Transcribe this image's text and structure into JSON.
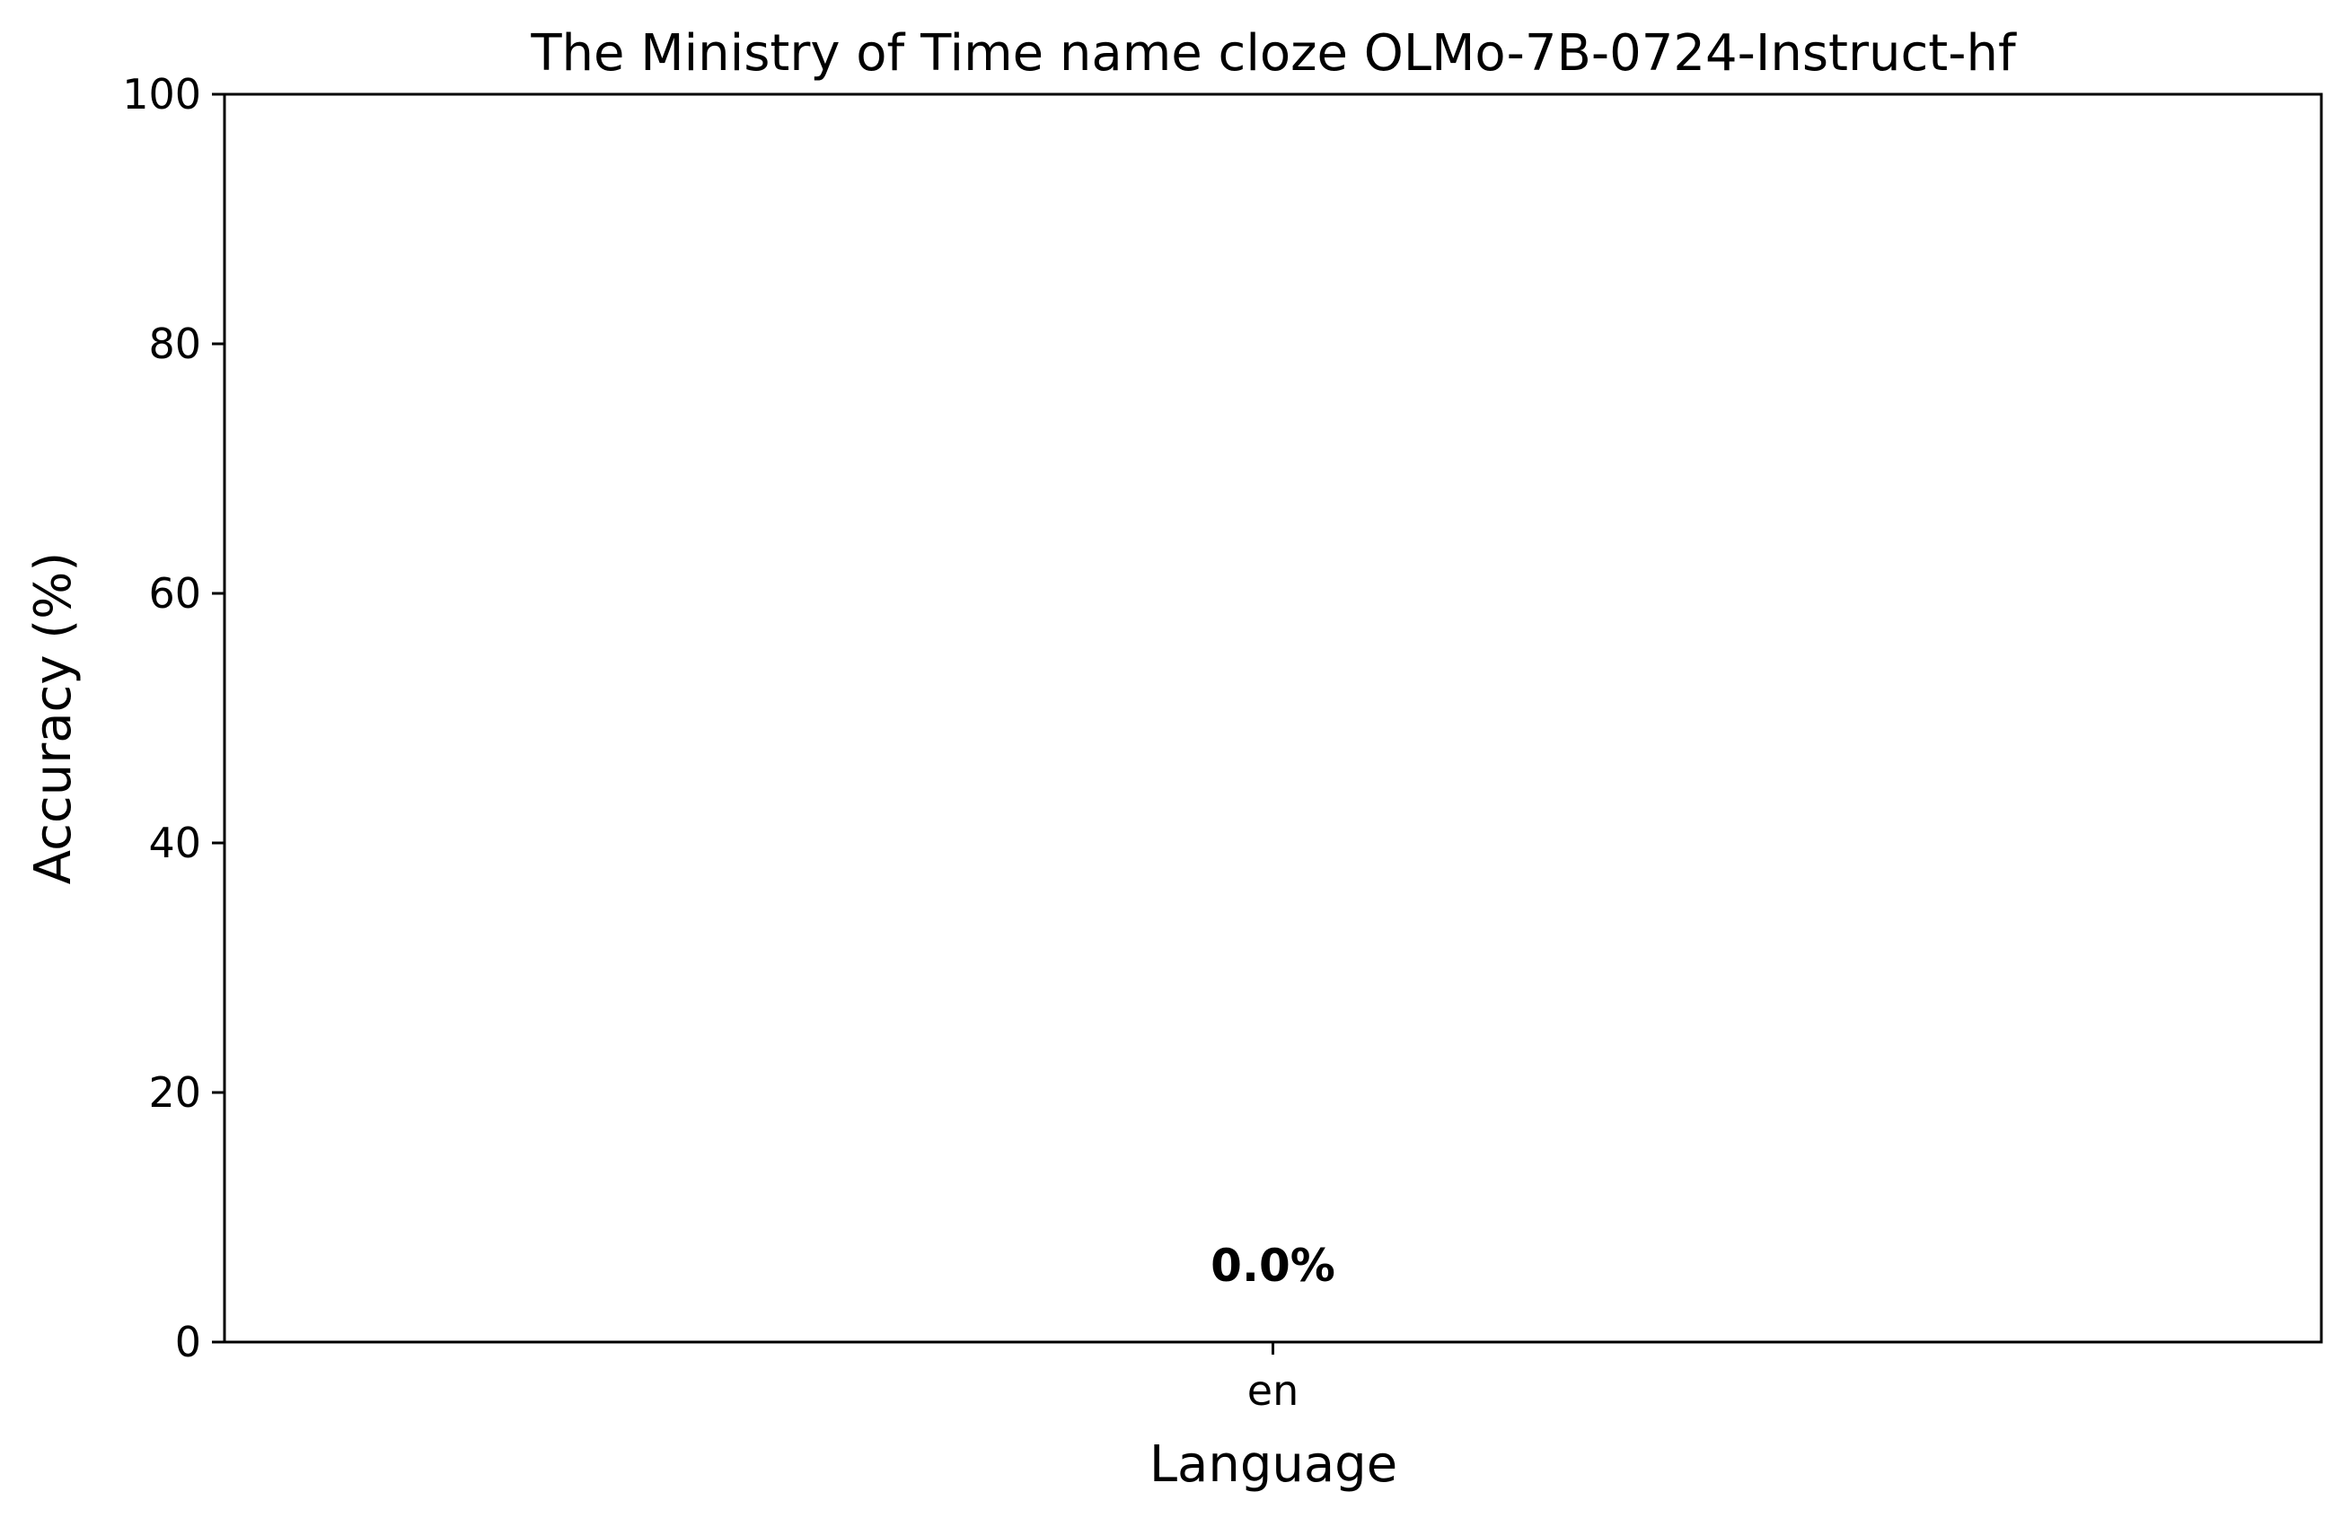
{
  "chart_data": {
    "type": "bar",
    "title": "The Ministry of Time name cloze OLMo-7B-0724-Instruct-hf",
    "xlabel": "Language",
    "ylabel": "Accuracy (%)",
    "categories": [
      "en"
    ],
    "values": [
      0.0
    ],
    "data_labels": [
      "0.0%"
    ],
    "ylim": [
      0,
      100
    ],
    "yticks": [
      0,
      20,
      40,
      60,
      80,
      100
    ],
    "ytick_labels": [
      "0",
      "20",
      "40",
      "60",
      "80",
      "100"
    ],
    "grid": false,
    "colors": {
      "axes": "#000000",
      "bar": "#4c72b0",
      "background": "#ffffff"
    }
  }
}
